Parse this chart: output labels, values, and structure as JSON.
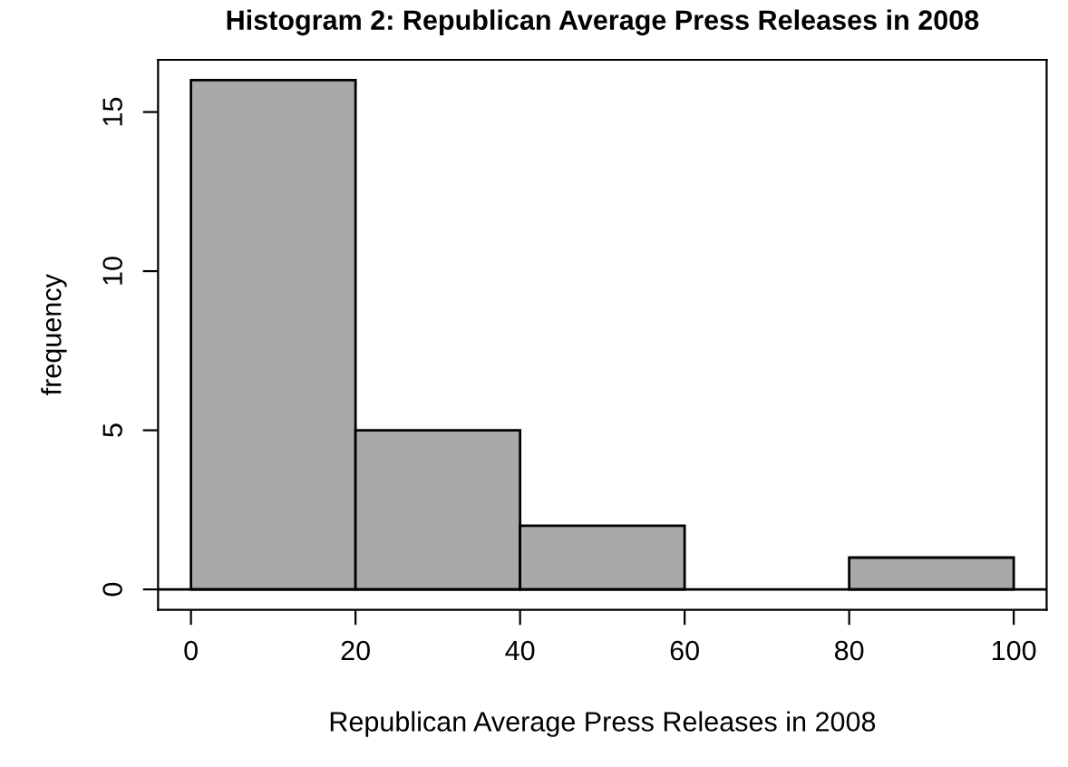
{
  "chart_data": {
    "type": "histogram",
    "title": "Histogram 2: Republican Average Press Releases in 2008",
    "xlabel": "Republican Average Press Releases in 2008",
    "ylabel": "frequency",
    "bins": [
      0,
      20,
      40,
      60,
      80,
      100
    ],
    "values": [
      16,
      5,
      2,
      0,
      1
    ],
    "color": "#a9a9a9",
    "xlim": [
      -4,
      104
    ],
    "xticks": [
      0,
      20,
      40,
      60,
      80,
      100
    ],
    "ylim": [
      -0.64,
      16.64
    ],
    "yticks": [
      0,
      5,
      10,
      15
    ],
    "ref_lines": [
      {
        "axis": "y",
        "value": 0,
        "color": "#000000"
      }
    ],
    "grid": false,
    "legend": false
  }
}
